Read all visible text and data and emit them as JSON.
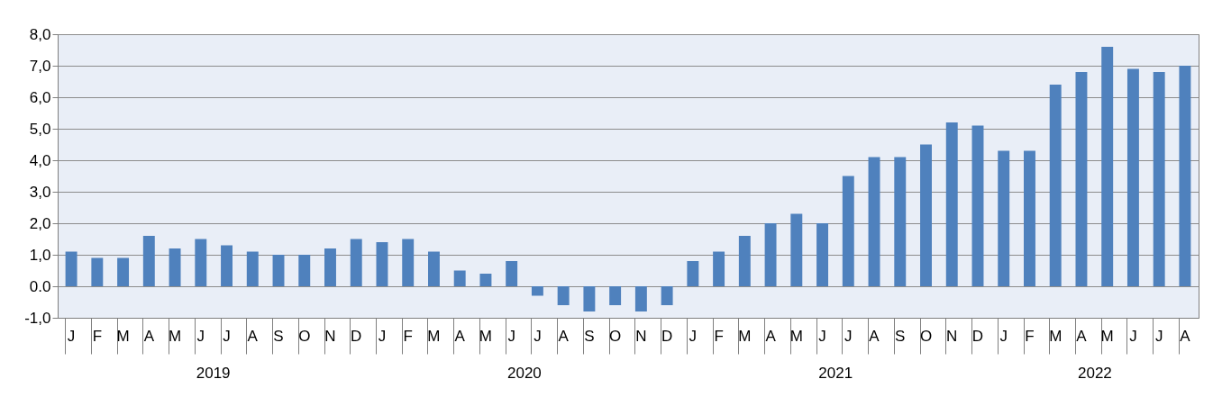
{
  "chart_data": {
    "type": "bar",
    "categories": [
      "J",
      "F",
      "M",
      "A",
      "M",
      "J",
      "J",
      "A",
      "S",
      "O",
      "N",
      "D",
      "J",
      "F",
      "M",
      "A",
      "M",
      "J",
      "J",
      "A",
      "S",
      "O",
      "N",
      "D",
      "J",
      "F",
      "M",
      "A",
      "M",
      "J",
      "J",
      "A",
      "S",
      "O",
      "N",
      "D",
      "J",
      "F",
      "M",
      "A",
      "M",
      "J",
      "J",
      "A"
    ],
    "values": [
      1.1,
      0.9,
      0.9,
      1.6,
      1.2,
      1.5,
      1.3,
      1.1,
      1.0,
      1.0,
      1.2,
      1.5,
      1.4,
      1.5,
      1.1,
      0.5,
      0.4,
      0.8,
      -0.3,
      -0.6,
      -0.8,
      -0.6,
      -0.8,
      -0.6,
      0.8,
      1.1,
      1.6,
      2.0,
      2.3,
      2.0,
      3.5,
      4.1,
      4.1,
      4.5,
      5.2,
      5.1,
      4.3,
      4.3,
      6.4,
      6.8,
      7.6,
      6.9,
      6.8,
      7.0
    ],
    "color": "#4f81bd",
    "ylim": [
      -1,
      8
    ],
    "yticks": [
      {
        "value": 8,
        "label": "8,0"
      },
      {
        "value": 7,
        "label": "7,0"
      },
      {
        "value": 6,
        "label": "6,0"
      },
      {
        "value": 5,
        "label": "5,0"
      },
      {
        "value": 4,
        "label": "4,0"
      },
      {
        "value": 3,
        "label": "3,0"
      },
      {
        "value": 2,
        "label": "2,0"
      },
      {
        "value": 1,
        "label": "1,0"
      },
      {
        "value": 0,
        "label": "0.0"
      },
      {
        "value": -1,
        "label": "-1,0"
      }
    ],
    "grid": "y",
    "annotations": [
      "2019",
      "2020",
      "2021",
      "2022"
    ]
  }
}
